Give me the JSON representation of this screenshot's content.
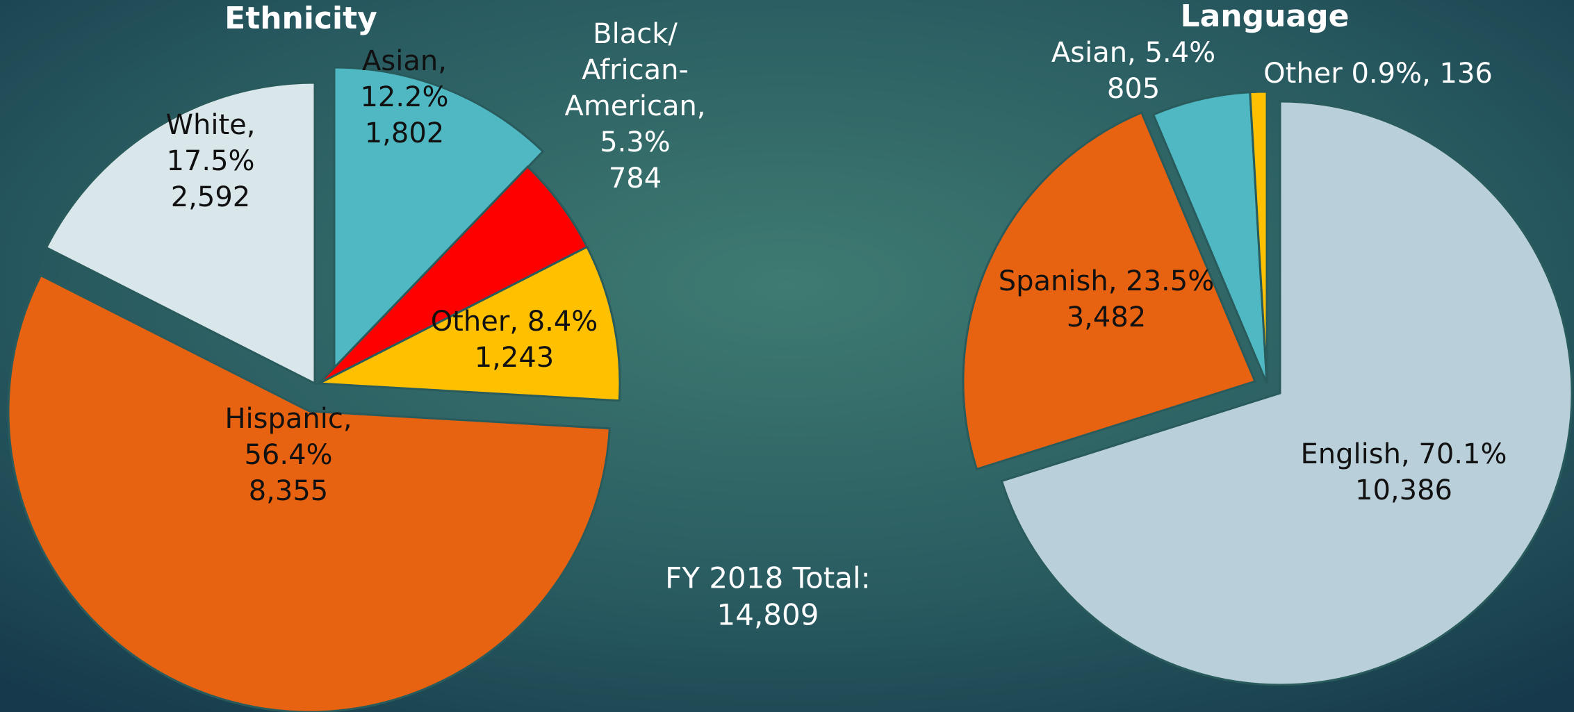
{
  "chart_data": [
    {
      "type": "pie",
      "title": "Ethnicity",
      "categories": [
        "Asian",
        "Black/African-American",
        "Other",
        "Hispanic",
        "White"
      ],
      "values": [
        1802,
        784,
        1243,
        8355,
        2592
      ],
      "value_labels": [
        [
          "Asian,",
          "12.2%",
          "1,802"
        ],
        [
          "Black/",
          "African-",
          "American,",
          "5.3%",
          "784"
        ],
        [
          "Other, 8.4%",
          "1,243"
        ],
        [
          "Hispanic,",
          "56.4%",
          "8,355"
        ],
        [
          "White,",
          "17.5%",
          "2,592"
        ]
      ],
      "colors": [
        "#4fb8c3",
        "#ff0000",
        "#ffc000",
        "#e86311",
        "#d9e6ea"
      ]
    },
    {
      "type": "pie",
      "title": "Language",
      "categories": [
        "English",
        "Spanish",
        "Asian",
        "Other"
      ],
      "values": [
        10386,
        3482,
        805,
        136
      ],
      "value_labels": [
        [
          "English, 70.1%",
          "10,386"
        ],
        [
          "Spanish, 23.5%",
          "3,482"
        ],
        [
          "Asian, 5.4%",
          "805"
        ],
        [
          "Other 0.9%, 136"
        ]
      ],
      "colors": [
        "#b9cfd9",
        "#e86311",
        "#4fb8c3",
        "#ffc000"
      ]
    }
  ],
  "annotation": [
    "FY 2018 Total:",
    "14,809"
  ]
}
